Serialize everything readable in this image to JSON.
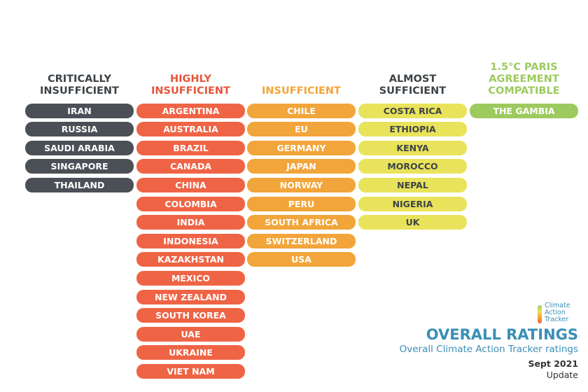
{
  "columns": [
    {
      "title": "CRITICALLY INSUFFICIENT",
      "title_color": "#3e4347",
      "color": "#4b5056",
      "items": [
        "IRAN",
        "RUSSIA",
        "SAUDI ARABIA",
        "SINGAPORE",
        "THAILAND"
      ]
    },
    {
      "title": "HIGHLY INSUFFICIENT",
      "title_color": "#e8553a",
      "color": "#ef6445",
      "items": [
        "ARGENTINA",
        "AUSTRALIA",
        "BRAZIL",
        "CANADA",
        "CHINA",
        "COLOMBIA",
        "INDIA",
        "INDONESIA",
        "KAZAKHSTAN",
        "MEXICO",
        "NEW ZEALAND",
        "SOUTH KOREA",
        "UAE",
        "UKRAINE",
        "VIET NAM"
      ]
    },
    {
      "title": "INSUFFICIENT",
      "title_color": "#f2a53a",
      "color": "#f2a53a",
      "items": [
        "CHILE",
        "EU",
        "GERMANY",
        "JAPAN",
        "NORWAY",
        "PERU",
        "SOUTH AFRICA",
        "SWITZERLAND",
        "USA"
      ]
    },
    {
      "title": "ALMOST SUFFICIENT",
      "title_color": "#3e4347",
      "color": "#e9e35c",
      "items": [
        "COSTA RICA",
        "ETHIOPIA",
        "KENYA",
        "MOROCCO",
        "NEPAL",
        "NIGERIA",
        "UK"
      ]
    },
    {
      "title": "1.5°C PARIS AGREEMENT COMPATIBLE",
      "title_color": "#9dca5e",
      "color": "#9dca5e",
      "items": [
        "THE GAMBIA"
      ]
    }
  ],
  "logo": {
    "lines": [
      "Climate",
      "Action",
      "Tracker"
    ]
  },
  "footer": {
    "title": "OVERALL RATINGS",
    "subtitle": "Overall Climate Action Tracker ratings",
    "date": "Sept 2021",
    "note": "Update"
  }
}
